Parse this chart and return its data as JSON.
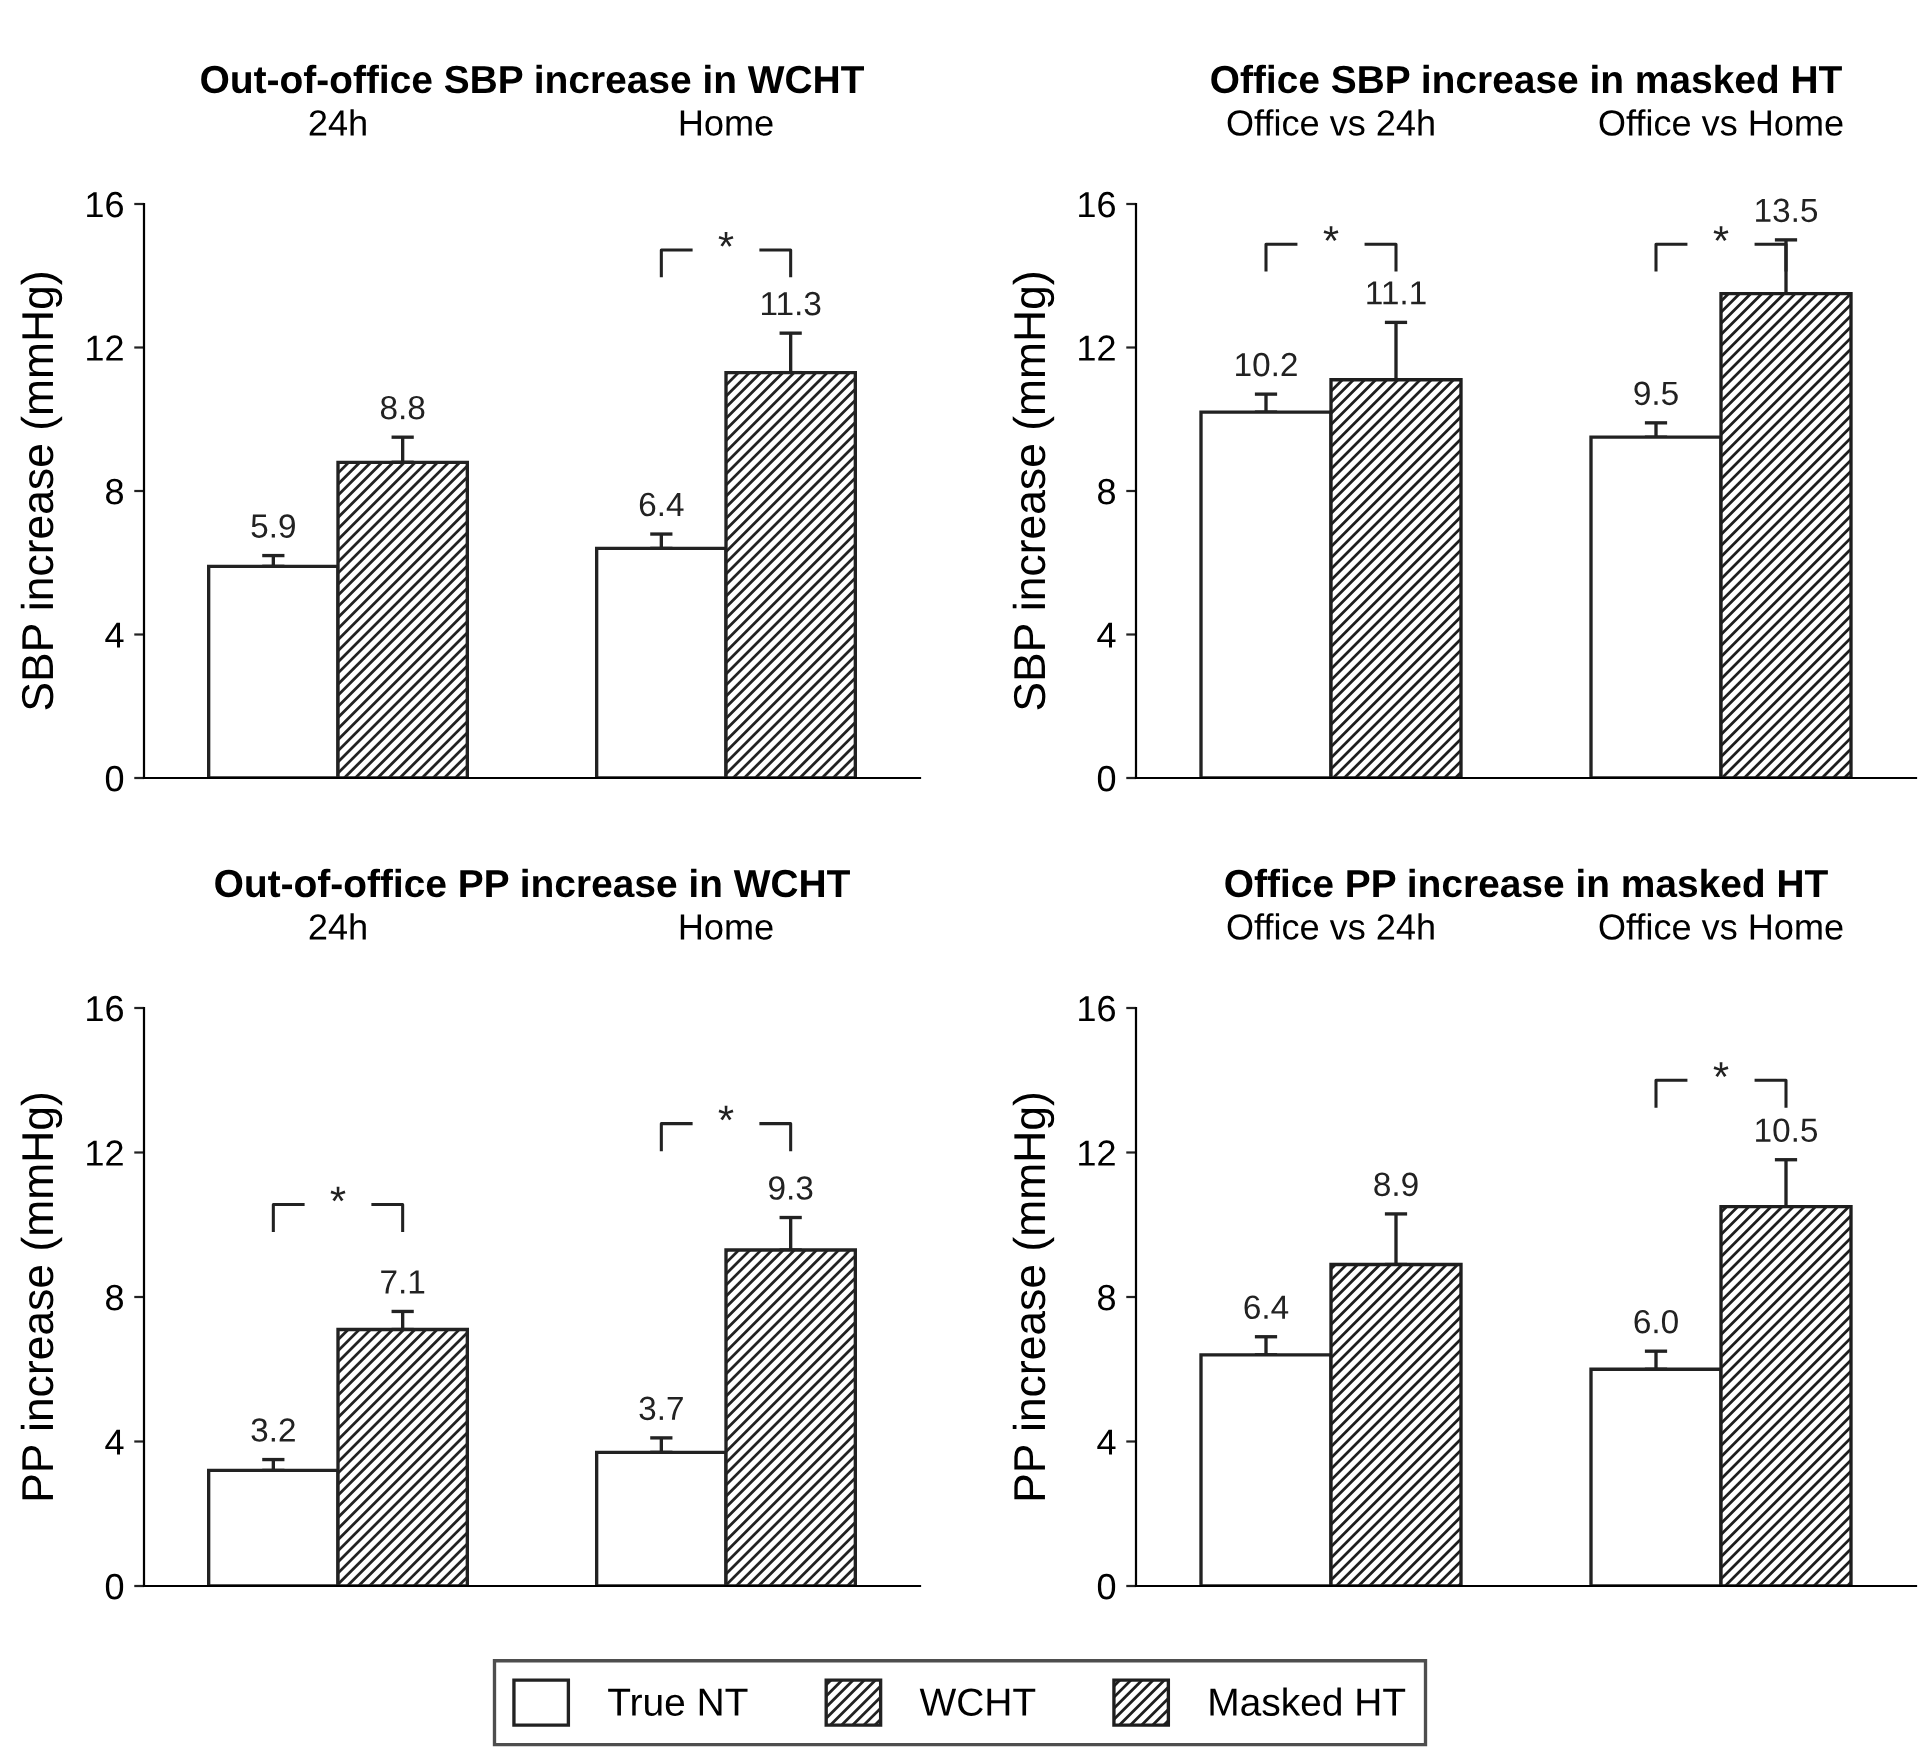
{
  "chart_data": [
    {
      "type": "bar",
      "title": "Out-of-office SBP increase in WCHT",
      "categories": [
        "24h",
        "Home"
      ],
      "ylabel": "SBP increase (mmHg)",
      "ylim": [
        0,
        16
      ],
      "yticks": [
        0,
        4,
        8,
        12,
        16
      ],
      "data_labels": true,
      "legend": "bottom",
      "series": [
        {
          "name": "True NT",
          "color": "#ffffff",
          "values": [
            5.9,
            6.4
          ],
          "errors": [
            [
              5.9,
              6.2
            ],
            [
              6.4,
              6.8
            ]
          ]
        },
        {
          "name": "WCHT",
          "color": "#222222",
          "values": [
            8.8,
            11.3
          ],
          "errors": [
            [
              8.8,
              9.5
            ],
            [
              11.3,
              12.4
            ]
          ]
        }
      ],
      "annotations": [
        "*"
      ]
    },
    {
      "type": "bar",
      "title": "Office SBP increase in masked HT",
      "categories": [
        "Office vs 24h",
        "Office vs Home"
      ],
      "ylabel": "SBP increase (mmHg)",
      "ylim": [
        0,
        16
      ],
      "yticks": [
        0,
        4,
        8,
        12,
        16
      ],
      "data_labels": true,
      "legend": "bottom",
      "series": [
        {
          "name": "True NT",
          "color": "#ffffff",
          "values": [
            10.2,
            9.5
          ],
          "errors": [
            [
              10.2,
              10.7
            ],
            [
              9.5,
              9.9
            ]
          ]
        },
        {
          "name": "Masked HT",
          "color": "#1e1e1e",
          "values": [
            11.1,
            13.5
          ],
          "errors": [
            [
              11.1,
              12.7
            ],
            [
              13.5,
              15.0
            ]
          ]
        }
      ],
      "annotations": [
        "*",
        "*"
      ]
    },
    {
      "type": "bar",
      "title": "Out-of-office PP increase in WCHT",
      "categories": [
        "24h",
        "Home"
      ],
      "ylabel": "PP increase (mmHg)",
      "ylim": [
        0,
        16
      ],
      "yticks": [
        0,
        4,
        8,
        12,
        16
      ],
      "data_labels": true,
      "legend": "bottom",
      "series": [
        {
          "name": "True NT",
          "color": "#ffffff",
          "values": [
            3.2,
            3.7
          ],
          "errors": [
            [
              3.2,
              3.5
            ],
            [
              3.7,
              4.1
            ]
          ]
        },
        {
          "name": "WCHT",
          "color": "#222222",
          "values": [
            7.1,
            9.3
          ],
          "errors": [
            [
              7.1,
              7.6
            ],
            [
              9.3,
              10.2
            ]
          ]
        }
      ],
      "annotations": [
        "*",
        "*"
      ]
    },
    {
      "type": "bar",
      "title": "Office PP increase in masked HT",
      "categories": [
        "Office vs 24h",
        "Office vs Home"
      ],
      "ylabel": "PP increase (mmHg)",
      "ylim": [
        0,
        16
      ],
      "yticks": [
        0,
        4,
        8,
        12,
        16
      ],
      "legend": "bottom",
      "series": [
        {
          "name": "True NT",
          "color": "#ffffff",
          "values": [
            6.4,
            6.0
          ],
          "value_labels": [
            "6.4",
            "6.0"
          ],
          "errors": [
            [
              6.4,
              6.9
            ],
            [
              6.0,
              6.5
            ]
          ]
        },
        {
          "name": "Masked HT",
          "color": "#1e1e1e",
          "values": [
            8.9,
            10.5
          ],
          "value_labels": [
            "8.9",
            "10.5"
          ],
          "errors": [
            [
              8.9,
              10.3
            ],
            [
              10.5,
              11.8
            ]
          ]
        }
      ],
      "annotations": [
        "*"
      ]
    }
  ]
}
